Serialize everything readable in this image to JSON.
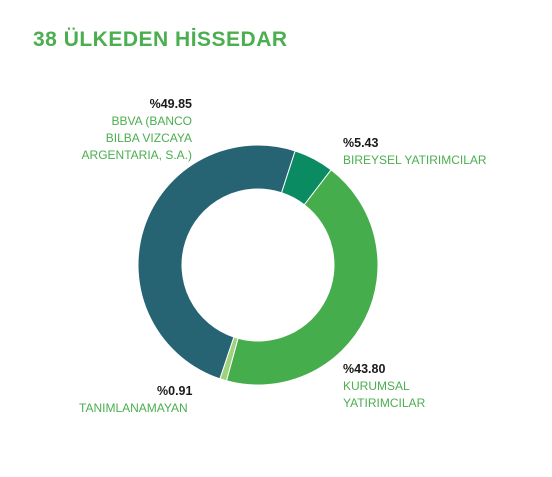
{
  "chart_data": {
    "type": "pie",
    "title": "38 ÜLKEDEN HİSSEDAR",
    "slices": [
      {
        "label": "BIREYSEL YATIRIMCILAR",
        "value": 5.43,
        "display": "%5.43",
        "color": "#0a8b62"
      },
      {
        "label": "KURUMSAL YATIRIMCILAR",
        "value": 43.8,
        "display": "%43.80",
        "color": "#45ad4b"
      },
      {
        "label": "TANIMLANAMAYAN",
        "value": 0.91,
        "display": "%0.91",
        "color": "#9fd27c"
      },
      {
        "label": "BBVA (BANCO BILBA VIZCAYA ARGENTARIA, S.A.)",
        "value": 49.85,
        "display": "%49.85",
        "color": "#266473"
      }
    ]
  },
  "labels": {
    "bbva": {
      "pct": "%49.85",
      "lines": [
        "BBVA (BANCO",
        "BILBA VIZCAYA",
        "ARGENTARIA, S.A.)"
      ]
    },
    "bireysel": {
      "pct": "%5.43",
      "lines": [
        "BIREYSEL YATIRIMCILAR"
      ]
    },
    "kurumsal": {
      "pct": "%43.80",
      "lines": [
        "KURUMSAL",
        "YATIRIMCILAR"
      ]
    },
    "tanim": {
      "pct": "%0.91",
      "lines": [
        "TANIMLANAMAYAN"
      ]
    }
  }
}
